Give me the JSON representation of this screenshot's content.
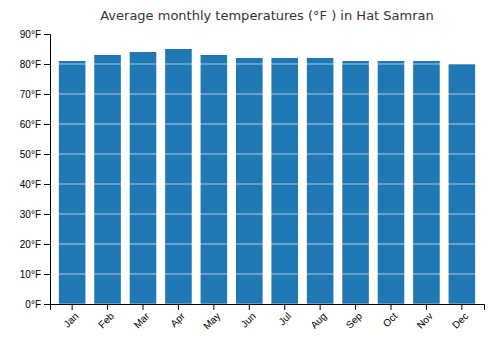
{
  "chart_data": {
    "type": "bar",
    "title": "Average monthly temperatures (°F ) in Hat Samran",
    "categories": [
      "Jan",
      "Feb",
      "Mar",
      "Apr",
      "May",
      "Jun",
      "Jul",
      "Aug",
      "Sep",
      "Oct",
      "Nov",
      "Dec"
    ],
    "values": [
      81,
      83,
      84,
      85,
      83,
      82,
      82,
      82,
      81,
      81,
      81,
      80
    ],
    "ylim": [
      0,
      90
    ],
    "yticks": [
      {
        "value": 0,
        "label": "0°F"
      },
      {
        "value": 10,
        "label": "10°F"
      },
      {
        "value": 20,
        "label": "20°F"
      },
      {
        "value": 30,
        "label": "30°F"
      },
      {
        "value": 40,
        "label": "40°F"
      },
      {
        "value": 50,
        "label": "50°F"
      },
      {
        "value": 60,
        "label": "60°F"
      },
      {
        "value": 70,
        "label": "70°F"
      },
      {
        "value": 80,
        "label": "80°F"
      },
      {
        "value": 90,
        "label": "90°F"
      }
    ],
    "grid": true
  }
}
